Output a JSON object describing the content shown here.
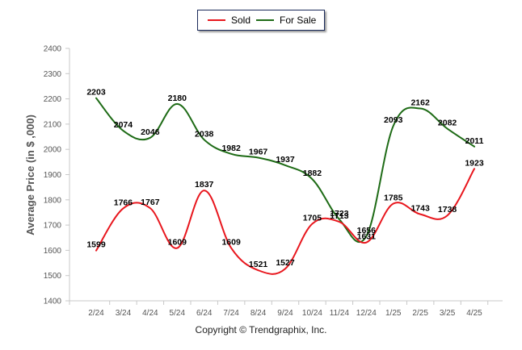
{
  "chart_data": {
    "type": "line",
    "ylabel": "Average Price (in $ ,000)",
    "categories": [
      "2/24",
      "3/24",
      "4/24",
      "5/24",
      "6/24",
      "7/24",
      "8/24",
      "9/24",
      "10/24",
      "11/24",
      "12/24",
      "1/25",
      "2/25",
      "3/25",
      "4/25"
    ],
    "ylim": [
      1400,
      2400
    ],
    "yticks": [
      1400,
      1500,
      1600,
      1700,
      1800,
      1900,
      2000,
      2100,
      2200,
      2300,
      2400
    ],
    "grid": false,
    "legend_position": "top-center",
    "series": [
      {
        "name": "Sold",
        "color": "#e8161d",
        "values": [
          1599,
          1766,
          1767,
          1609,
          1837,
          1609,
          1521,
          1527,
          1705,
          1713,
          1631,
          1785,
          1743,
          1738,
          1923
        ]
      },
      {
        "name": "For Sale",
        "color": "#1e6b16",
        "values": [
          2203,
          2074,
          2046,
          2180,
          2038,
          1982,
          1967,
          1937,
          1882,
          1723,
          1656,
          2093,
          2162,
          2082,
          2011
        ]
      }
    ]
  },
  "legend": {
    "sold": "Sold",
    "for_sale": "For Sale"
  },
  "copyright": "Copyright © Trendgraphix, Inc."
}
